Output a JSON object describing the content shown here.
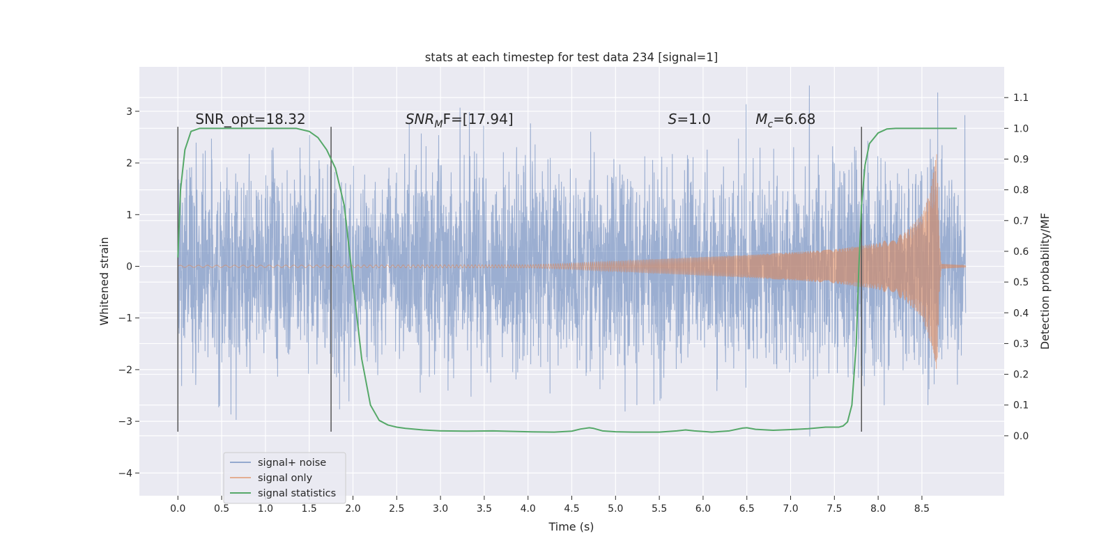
{
  "chart_data": {
    "type": "line",
    "title": "stats at each timestep for test data 234 [signal=1]",
    "xlabel": "Time (s)",
    "ylabel": "Whitened strain",
    "ylabel_right": "Detection probability/MF",
    "xlim": [
      -0.44,
      9.44
    ],
    "ylim": [
      -4.44,
      3.86
    ],
    "ylim_right": [
      -0.195,
      1.2
    ],
    "x_ticks": [
      0.0,
      0.5,
      1.0,
      1.5,
      2.0,
      2.5,
      3.0,
      3.5,
      4.0,
      4.5,
      5.0,
      5.5,
      6.0,
      6.5,
      7.0,
      7.5,
      8.0,
      8.5
    ],
    "x_tick_labels": [
      "0.0",
      "0.5",
      "1.0",
      "1.5",
      "2.0",
      "2.5",
      "3.0",
      "3.5",
      "4.0",
      "4.5",
      "5.0",
      "5.5",
      "6.0",
      "6.5",
      "7.0",
      "7.5",
      "8.0",
      "8.5"
    ],
    "y_ticks": [
      -4,
      -3,
      -2,
      -1,
      0,
      1,
      2,
      3
    ],
    "y_tick_labels": [
      "−4",
      "−3",
      "−2",
      "−1",
      "0",
      "1",
      "2",
      "3"
    ],
    "y_ticks_right": [
      0.0,
      0.1,
      0.2,
      0.3,
      0.4,
      0.5,
      0.6,
      0.7,
      0.8,
      0.9,
      1.0,
      1.1
    ],
    "y_tick_labels_right": [
      "0.0",
      "0.1",
      "0.2",
      "0.3",
      "0.4",
      "0.5",
      "0.6",
      "0.7",
      "0.8",
      "0.9",
      "1.0",
      "1.1"
    ],
    "grid": true,
    "legend_position": "lower-left",
    "colors": {
      "background": "#eaeaf2",
      "grid": "#ffffff",
      "noise": "#4c72b0",
      "signal": "#dd8452",
      "stats": "#55a868",
      "vline": "#555555"
    },
    "annotations": [
      {
        "text": "SNR_opt=18.32",
        "x": 0.2,
        "y": 2.85
      },
      {
        "base": "SNR",
        "sub": "M",
        "rest": "F=[17.94]",
        "x": 2.6,
        "y": 2.85
      },
      {
        "base": "S",
        "sub": "",
        "rest": "=1.0",
        "x": 5.6,
        "y": 2.85
      },
      {
        "base": "M",
        "sub": "c",
        "rest": "=6.68",
        "x": 6.6,
        "y": 2.85
      }
    ],
    "vlines": [
      0.0,
      1.75,
      7.81
    ],
    "vline_range": [
      -3.2,
      2.7
    ],
    "noise_range": [
      0.0,
      9.0
    ],
    "noise_envelope_points": [
      [
        0,
        1.5
      ],
      [
        2.0,
        1.5
      ],
      [
        9.0,
        1.5
      ]
    ],
    "signal_envelope": [
      [
        0.0,
        0.02
      ],
      [
        4.0,
        0.03
      ],
      [
        4.5,
        0.06
      ],
      [
        5.0,
        0.1
      ],
      [
        5.5,
        0.14
      ],
      [
        6.0,
        0.18
      ],
      [
        6.5,
        0.22
      ],
      [
        7.0,
        0.27
      ],
      [
        7.5,
        0.33
      ],
      [
        8.0,
        0.45
      ],
      [
        8.3,
        0.65
      ],
      [
        8.5,
        1.0
      ],
      [
        8.6,
        1.5
      ],
      [
        8.67,
        2.2
      ],
      [
        8.7,
        0.5
      ],
      [
        8.72,
        0.05
      ],
      [
        9.0,
        0.02
      ]
    ],
    "series": [
      {
        "name": "signal+ noise",
        "role": "noise"
      },
      {
        "name": "signal only",
        "role": "signal"
      },
      {
        "name": "signal statistics",
        "role": "stats",
        "x": [
          0.0,
          0.03,
          0.08,
          0.15,
          0.25,
          0.4,
          0.6,
          0.8,
          1.0,
          1.2,
          1.35,
          1.5,
          1.6,
          1.7,
          1.8,
          1.9,
          2.0,
          2.1,
          2.2,
          2.3,
          2.4,
          2.5,
          2.6,
          2.8,
          3.0,
          3.3,
          3.6,
          4.0,
          4.3,
          4.5,
          4.6,
          4.7,
          4.75,
          4.85,
          5.0,
          5.2,
          5.5,
          5.7,
          5.8,
          5.9,
          6.1,
          6.3,
          6.45,
          6.5,
          6.6,
          6.8,
          7.0,
          7.2,
          7.4,
          7.55,
          7.6,
          7.65,
          7.7,
          7.75,
          7.78,
          7.81,
          7.85,
          7.9,
          8.0,
          8.1,
          8.2,
          8.4,
          8.6,
          8.9
        ],
        "values": [
          0.58,
          0.8,
          0.93,
          0.99,
          1.0,
          1.0,
          1.0,
          1.0,
          1.0,
          1.0,
          1.0,
          0.99,
          0.97,
          0.93,
          0.87,
          0.75,
          0.5,
          0.25,
          0.1,
          0.05,
          0.035,
          0.028,
          0.024,
          0.019,
          0.016,
          0.015,
          0.016,
          0.013,
          0.012,
          0.015,
          0.022,
          0.026,
          0.024,
          0.016,
          0.013,
          0.012,
          0.012,
          0.016,
          0.019,
          0.016,
          0.012,
          0.016,
          0.025,
          0.026,
          0.021,
          0.018,
          0.02,
          0.023,
          0.028,
          0.028,
          0.032,
          0.045,
          0.1,
          0.3,
          0.55,
          0.75,
          0.88,
          0.95,
          0.985,
          0.998,
          1.0,
          1.0,
          1.0,
          1.0
        ]
      }
    ]
  }
}
